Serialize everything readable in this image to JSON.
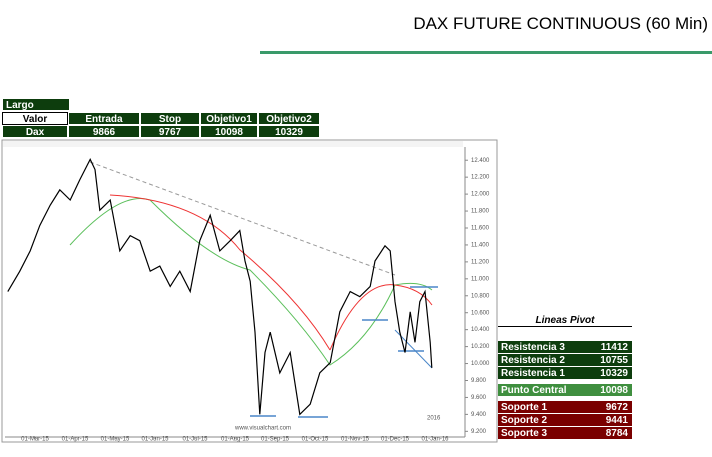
{
  "header": {
    "title": "DAX FUTURE CONTINUOUS (60 Min)"
  },
  "position_table": {
    "label": "Largo",
    "columns": [
      "Valor",
      "Entrada",
      "Stop",
      "Objetivo1",
      "Objetivo2"
    ],
    "row": [
      "Dax",
      9866,
      9767,
      10098,
      10329
    ]
  },
  "pivot_table": {
    "title": "Lineas Pivot",
    "rows": [
      [
        "Resistencia 3",
        11412
      ],
      [
        "Resistencia 2",
        10755
      ],
      [
        "Resistencia 1",
        10329
      ],
      [
        "Punto Central",
        10098
      ],
      [
        "Soporte 1",
        9672
      ],
      [
        "Soporte 2",
        9441
      ],
      [
        "Soporte 3",
        8784
      ]
    ]
  },
  "chart_data": {
    "type": "line",
    "watermark": "www.visualchart.com",
    "year_label": "2016",
    "x": [
      -0.68,
      -0.38,
      -0.12,
      0.12,
      0.38,
      0.62,
      0.88,
      1.12,
      1.38,
      1.5,
      1.62,
      1.88,
      2.12,
      2.38,
      2.62,
      2.88,
      3.12,
      3.38,
      3.62,
      3.88,
      4.12,
      4.38,
      4.62,
      4.88,
      5.12,
      5.25,
      5.38,
      5.5,
      5.62,
      5.75,
      5.88,
      6.12,
      6.38,
      6.62,
      6.88,
      7.12,
      7.38,
      7.62,
      7.88,
      8.12,
      8.38,
      8.5,
      8.75,
      8.88,
      9,
      9.12,
      9.25,
      9.38,
      9.5,
      9.62,
      9.75,
      9.88,
      9.92
    ],
    "series": [
      {
        "name": "DAX",
        "color": "#000000",
        "values": [
          10850,
          11090,
          11330,
          11630,
          11870,
          12050,
          11930,
          12170,
          12410,
          12290,
          11810,
          11930,
          11330,
          11510,
          11450,
          11090,
          11150,
          10910,
          11090,
          10850,
          11450,
          11750,
          11330,
          11450,
          11570,
          11210,
          10970,
          10370,
          9400,
          10130,
          10370,
          9890,
          10130,
          9400,
          9520,
          9890,
          10010,
          10610,
          10850,
          10790,
          10910,
          11210,
          11390,
          11330,
          10730,
          10370,
          10130,
          10610,
          10250,
          10730,
          10850,
          10250,
          9950
        ]
      }
    ],
    "xlim": [
      -0.75,
      10.75
    ],
    "xticks": [
      {
        "value": 0,
        "label": "01-Mar-15"
      },
      {
        "value": 1,
        "label": "01-Apr-15"
      },
      {
        "value": 2,
        "label": "01-May-15"
      },
      {
        "value": 3,
        "label": "01-Jun-15"
      },
      {
        "value": 4,
        "label": "01-Jul-15"
      },
      {
        "value": 5,
        "label": "01-Aug-15"
      },
      {
        "value": 6,
        "label": "01-Sep-15"
      },
      {
        "value": 7,
        "label": "01-Oct-15"
      },
      {
        "value": 8,
        "label": "01-Nov-15"
      },
      {
        "value": 9,
        "label": "01-Dec-15"
      },
      {
        "value": 10,
        "label": "01-Jan-16"
      }
    ],
    "ylim": [
      9133,
      12556
    ],
    "yticks": [
      {
        "value": 12400,
        "label": "12.400"
      },
      {
        "value": 12200,
        "label": "12.200"
      },
      {
        "value": 12000,
        "label": "12.000"
      },
      {
        "value": 11800,
        "label": "11.800"
      },
      {
        "value": 11600,
        "label": "11.600"
      },
      {
        "value": 11400,
        "label": "11.400"
      },
      {
        "value": 11200,
        "label": "11.200"
      },
      {
        "value": 11000,
        "label": "11.000"
      },
      {
        "value": 10800,
        "label": "10.800"
      },
      {
        "value": 10600,
        "label": "10.600"
      },
      {
        "value": 10400,
        "label": "10.400"
      },
      {
        "value": 10200,
        "label": "10.200"
      },
      {
        "value": 10000,
        "label": "10.000"
      },
      {
        "value": 9800,
        "label": "9.800"
      },
      {
        "value": 9600,
        "label": "9.600"
      },
      {
        "value": 9400,
        "label": "9.400"
      },
      {
        "value": 9200,
        "label": "9.200"
      }
    ]
  }
}
